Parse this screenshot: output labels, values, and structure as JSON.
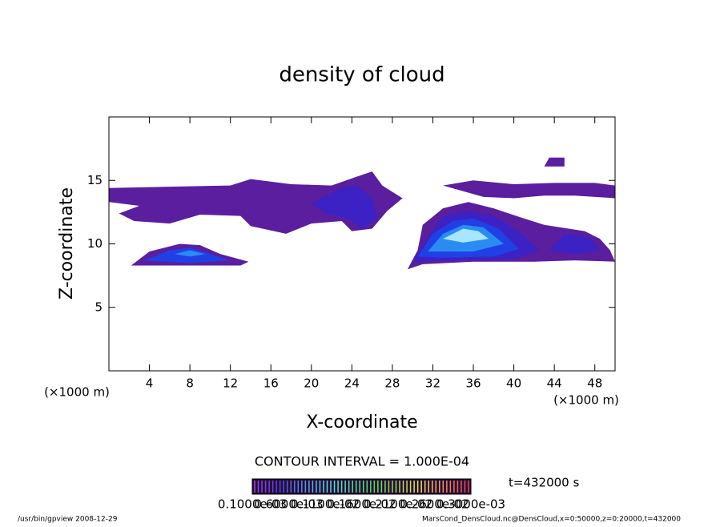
{
  "chart_data": {
    "type": "contour",
    "title": "density of cloud",
    "xlabel": "X-coordinate",
    "ylabel": "Z-coordinate",
    "xunit": "(×1000 m)",
    "yunit": "(×1000 m)",
    "xlim": [
      0,
      50
    ],
    "ylim": [
      0,
      20
    ],
    "xticks": [
      4,
      8,
      12,
      16,
      20,
      24,
      28,
      32,
      36,
      40,
      44,
      48
    ],
    "yticks": [
      5,
      10,
      15
    ],
    "colors": [
      "#5a1e9e",
      "#3c22c4",
      "#2040e6",
      "#2a8cf2",
      "#a8e6ff"
    ],
    "levels": [
      0.1,
      0.3,
      0.5,
      0.7,
      0.9
    ],
    "regions": [
      {
        "value": 0.1,
        "points": [
          [
            0,
            13.3
          ],
          [
            0,
            14.4
          ],
          [
            6,
            14.5
          ],
          [
            12,
            14.6
          ],
          [
            14,
            15.1
          ],
          [
            18,
            14.7
          ],
          [
            22,
            14.6
          ],
          [
            24.5,
            15.3
          ],
          [
            26,
            15.7
          ],
          [
            27,
            14.6
          ],
          [
            29,
            13.6
          ],
          [
            27.5,
            12.6
          ],
          [
            26,
            11.2
          ],
          [
            24,
            11
          ],
          [
            23,
            11.8
          ],
          [
            20,
            11.6
          ],
          [
            17.5,
            10.8
          ],
          [
            14,
            11.4
          ],
          [
            13,
            12.2
          ],
          [
            9,
            12.3
          ],
          [
            6,
            11.6
          ],
          [
            2.5,
            11.8
          ],
          [
            1,
            12.4
          ],
          [
            3,
            13
          ]
        ]
      },
      {
        "value": 0.3,
        "points": [
          [
            20,
            13.2
          ],
          [
            23,
            14.4
          ],
          [
            24.5,
            14.6
          ],
          [
            26,
            13.6
          ],
          [
            26.5,
            12
          ],
          [
            25,
            11.2
          ],
          [
            23.5,
            12
          ],
          [
            21.5,
            12.4
          ]
        ]
      },
      {
        "value": 0.1,
        "points": [
          [
            2.2,
            8.3
          ],
          [
            4,
            9.4
          ],
          [
            7,
            10
          ],
          [
            9,
            9.9
          ],
          [
            11,
            9.2
          ],
          [
            13.8,
            8.6
          ],
          [
            13,
            8.3
          ]
        ]
      },
      {
        "value": 0.5,
        "points": [
          [
            3.5,
            8.7
          ],
          [
            6,
            9.5
          ],
          [
            8,
            9.7
          ],
          [
            10,
            9.2
          ],
          [
            12,
            8.7
          ],
          [
            8,
            8.5
          ]
        ]
      },
      {
        "value": 0.7,
        "points": [
          [
            6.5,
            9.2
          ],
          [
            8,
            9.5
          ],
          [
            9.5,
            9.2
          ],
          [
            8,
            9
          ]
        ]
      },
      {
        "value": 0.1,
        "points": [
          [
            33,
            14.6
          ],
          [
            36,
            15
          ],
          [
            40,
            14.7
          ],
          [
            44,
            14.8
          ],
          [
            48,
            14.8
          ],
          [
            50,
            14.6
          ],
          [
            50,
            13.6
          ],
          [
            46,
            13.8
          ],
          [
            43,
            13.8
          ],
          [
            40,
            13.6
          ],
          [
            37,
            13.7
          ]
        ]
      },
      {
        "value": 0.1,
        "points": [
          [
            29.5,
            8
          ],
          [
            30.5,
            9.5
          ],
          [
            31,
            11.5
          ],
          [
            33,
            12.8
          ],
          [
            35.5,
            13.3
          ],
          [
            38,
            12.8
          ],
          [
            41,
            12
          ],
          [
            43,
            11.5
          ],
          [
            47,
            11
          ],
          [
            48.5,
            10.4
          ],
          [
            49.5,
            9.5
          ],
          [
            50,
            8.6
          ],
          [
            46,
            8.7
          ],
          [
            42,
            8.6
          ],
          [
            36,
            8.6
          ],
          [
            31,
            8.4
          ]
        ]
      },
      {
        "value": 0.3,
        "points": [
          [
            30,
            8.6
          ],
          [
            31.5,
            10.5
          ],
          [
            33,
            12.2
          ],
          [
            35.5,
            12.6
          ],
          [
            38,
            12.2
          ],
          [
            40.5,
            11
          ],
          [
            42.5,
            9.5
          ],
          [
            40,
            8.8
          ],
          [
            34,
            8.7
          ]
        ]
      },
      {
        "value": 0.5,
        "points": [
          [
            30.5,
            9
          ],
          [
            32,
            10.8
          ],
          [
            34,
            11.8
          ],
          [
            36,
            12
          ],
          [
            38.5,
            11.2
          ],
          [
            40.5,
            9.6
          ],
          [
            38,
            9
          ],
          [
            33,
            8.9
          ]
        ]
      },
      {
        "value": 0.7,
        "points": [
          [
            31.5,
            9.4
          ],
          [
            33,
            10.8
          ],
          [
            35,
            11.5
          ],
          [
            37,
            11.3
          ],
          [
            39,
            10
          ],
          [
            36,
            9.4
          ]
        ]
      },
      {
        "value": 0.9,
        "points": [
          [
            33,
            10.4
          ],
          [
            35,
            11.2
          ],
          [
            36.5,
            11
          ],
          [
            37.5,
            10.4
          ],
          [
            35,
            10.1
          ]
        ]
      },
      {
        "value": 0.3,
        "points": [
          [
            43.5,
            9.5
          ],
          [
            45,
            10.8
          ],
          [
            47.5,
            10.5
          ],
          [
            48.5,
            9.5
          ],
          [
            46,
            9.2
          ]
        ]
      },
      {
        "value": 0.1,
        "points": [
          [
            43,
            16.1
          ],
          [
            43.5,
            16.8
          ],
          [
            45,
            16.8
          ],
          [
            45,
            16.1
          ]
        ]
      }
    ],
    "contour_interval": "CONTOUR INTERVAL = 1.000E-04",
    "time": "t=432000 s",
    "colorbar_labels": [
      "0.1000e-03",
      "0.6000e-03",
      "0.1100e-02",
      "0.1600e-02",
      "0.2100e-02",
      "0.2600e-02",
      "0.3000e-03"
    ],
    "footer_left": "/usr/bin/gpview   2008-12-29",
    "footer_right": "MarsCond_DensCloud.nc@DensCloud,x=0:50000,z=0:20000,t=432000"
  }
}
